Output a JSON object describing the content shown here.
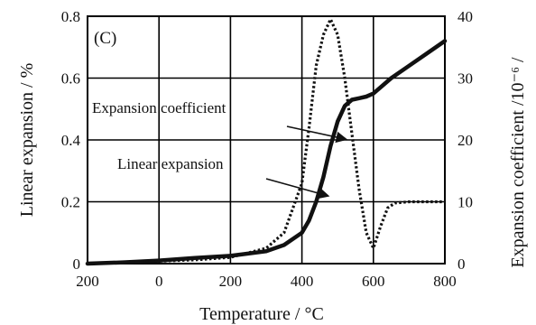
{
  "chart_data": {
    "type": "line",
    "panel_label": "(C)",
    "xlabel": "Temperature / °C",
    "ylabel_left": "Linear expansion / %",
    "ylabel_right": "Expansion coefficient /10⁻⁶ /",
    "xlim": [
      -200,
      800
    ],
    "ylim_left": [
      0,
      0.8
    ],
    "ylim_right": [
      0,
      40
    ],
    "x_ticks": [
      "200",
      "0",
      "200",
      "400",
      "600",
      "800"
    ],
    "x_tick_values": [
      -200,
      0,
      200,
      400,
      600,
      800
    ],
    "y_left_ticks": [
      "0",
      "0.2",
      "0.4",
      "0.6",
      "0.8"
    ],
    "y_left_tick_values": [
      0,
      0.2,
      0.4,
      0.6,
      0.8
    ],
    "y_right_ticks": [
      "0",
      "10",
      "20",
      "30",
      "40"
    ],
    "y_right_tick_values": [
      0,
      10,
      20,
      30,
      40
    ],
    "grid": true,
    "annotations": [
      {
        "text": "Expansion coefficient",
        "points_to": {
          "x": 520,
          "y_axis": "left",
          "y": 0.4
        }
      },
      {
        "text": "Linear expansion",
        "points_to": {
          "x": 470,
          "y_axis": "left",
          "y": 0.22
        }
      }
    ],
    "series": [
      {
        "axis": "left",
        "style": "solid-thick",
        "x": [
          -200,
          -100,
          0,
          100,
          200,
          300,
          350,
          400,
          420,
          440,
          460,
          480,
          500,
          520,
          540,
          560,
          580,
          600,
          650,
          700,
          750,
          800
        ],
        "y": [
          0.0,
          0.004,
          0.01,
          0.018,
          0.025,
          0.04,
          0.06,
          0.1,
          0.14,
          0.2,
          0.28,
          0.38,
          0.46,
          0.51,
          0.53,
          0.535,
          0.54,
          0.55,
          0.6,
          0.64,
          0.68,
          0.72
        ]
      },
      {
        "axis": "right",
        "style": "dotted",
        "x": [
          -200,
          -100,
          0,
          100,
          200,
          300,
          350,
          400,
          420,
          440,
          460,
          480,
          500,
          520,
          540,
          560,
          580,
          600,
          620,
          640,
          660,
          700,
          750,
          800
        ],
        "y": [
          0.0,
          0.2,
          0.4,
          0.6,
          1.0,
          2.5,
          5.0,
          13.0,
          22.0,
          32.0,
          37.0,
          39.5,
          37.0,
          30.0,
          21.0,
          12.0,
          5.0,
          2.5,
          6.0,
          9.0,
          9.8,
          10.0,
          10.0,
          10.0
        ]
      }
    ]
  }
}
